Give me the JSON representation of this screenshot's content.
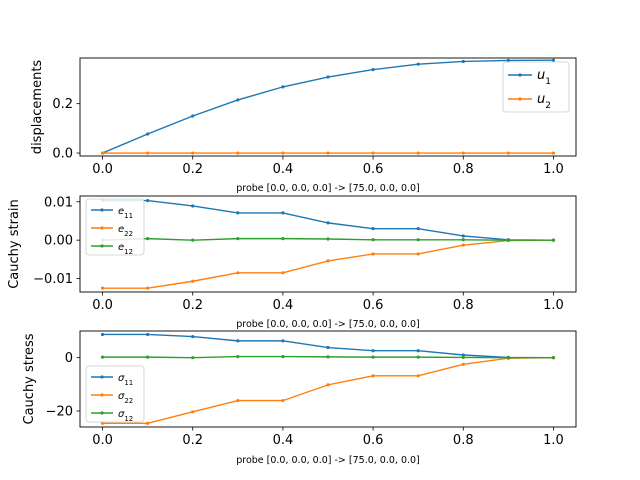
{
  "chart_data": [
    {
      "type": "line",
      "ylabel": "displacements",
      "xcaption": "probe [0.0, 0.0, 0.0] -> [75.0, 0.0, 0.0]",
      "x": [
        0.0,
        0.1,
        0.2,
        0.3,
        0.4,
        0.5,
        0.6,
        0.7,
        0.8,
        0.9,
        1.0
      ],
      "xlim": [
        -0.05,
        1.05
      ],
      "ylim": [
        -0.012,
        0.385
      ],
      "xticks": [
        "0.0",
        "0.2",
        "0.4",
        "0.6",
        "0.8",
        "1.0"
      ],
      "yticks": [
        0.0,
        0.2
      ],
      "ytick_labels": [
        "0.0",
        "0.2"
      ],
      "legend_position": "right",
      "series": [
        {
          "name": "u",
          "sub": "1",
          "color": "#1f77b4",
          "values": [
            0.0,
            0.077,
            0.15,
            0.215,
            0.268,
            0.308,
            0.338,
            0.36,
            0.371,
            0.375,
            0.376
          ]
        },
        {
          "name": "u",
          "sub": "2",
          "color": "#ff7f0e",
          "values": [
            0.0,
            0.0,
            0.0,
            0.0,
            0.0,
            0.0,
            0.0,
            0.0,
            0.0,
            0.0,
            0.0
          ]
        }
      ]
    },
    {
      "type": "line",
      "ylabel": "Cauchy strain",
      "xcaption": "probe [0.0, 0.0, 0.0] -> [75.0, 0.0, 0.0]",
      "x": [
        0.0,
        0.1,
        0.2,
        0.3,
        0.4,
        0.5,
        0.6,
        0.7,
        0.8,
        0.9,
        1.0
      ],
      "xlim": [
        -0.05,
        1.05
      ],
      "ylim": [
        -0.0135,
        0.0115
      ],
      "xticks": [
        "0.0",
        "0.2",
        "0.4",
        "0.6",
        "0.8",
        "1.0"
      ],
      "yticks": [
        0.01,
        0.0,
        -0.01
      ],
      "ytick_labels": [
        "0.01",
        "0.00",
        "−0.01"
      ],
      "legend_position": "upper left",
      "series": [
        {
          "name": "e",
          "sub": "11",
          "color": "#1f77b4",
          "values": [
            0.0103,
            0.0103,
            0.0089,
            0.0071,
            0.0071,
            0.0045,
            0.003,
            0.003,
            0.0011,
            0.0001,
            0.0
          ]
        },
        {
          "name": "e",
          "sub": "22",
          "color": "#ff7f0e",
          "values": [
            -0.0125,
            -0.0125,
            -0.0107,
            -0.0085,
            -0.0085,
            -0.0054,
            -0.0036,
            -0.0036,
            -0.0013,
            -0.0001,
            0.0
          ]
        },
        {
          "name": "e",
          "sub": "12",
          "color": "#2ca02c",
          "values": [
            0.0,
            0.0004,
            0.0,
            0.0004,
            0.0004,
            0.0003,
            0.0001,
            0.0001,
            0.0001,
            0.0,
            0.0
          ]
        }
      ]
    },
    {
      "type": "line",
      "ylabel": "Cauchy stress",
      "xcaption": "probe [0.0, 0.0, 0.0] -> [75.0, 0.0, 0.0]",
      "x": [
        0.0,
        0.1,
        0.2,
        0.3,
        0.4,
        0.5,
        0.6,
        0.7,
        0.8,
        0.9,
        1.0
      ],
      "xlim": [
        -0.05,
        1.05
      ],
      "ylim": [
        -26.0,
        10.0
      ],
      "xticks": [
        "0.0",
        "0.2",
        "0.4",
        "0.6",
        "0.8",
        "1.0"
      ],
      "yticks": [
        0,
        -20
      ],
      "ytick_labels": [
        "0",
        "−20"
      ],
      "legend_position": "lower left",
      "series": [
        {
          "name": "σ",
          "sub": "11",
          "color": "#1f77b4",
          "values": [
            8.7,
            8.7,
            7.9,
            6.3,
            6.3,
            3.8,
            2.6,
            2.6,
            1.0,
            0.1,
            0.0
          ]
        },
        {
          "name": "σ",
          "sub": "22",
          "color": "#ff7f0e",
          "values": [
            -24.6,
            -24.6,
            -20.3,
            -16.1,
            -16.1,
            -10.2,
            -6.8,
            -6.8,
            -2.5,
            -0.2,
            0.0
          ]
        },
        {
          "name": "σ",
          "sub": "12",
          "color": "#2ca02c",
          "values": [
            0.2,
            0.2,
            0.0,
            0.4,
            0.4,
            0.3,
            0.2,
            0.2,
            0.1,
            0.0,
            0.0
          ]
        }
      ]
    }
  ]
}
